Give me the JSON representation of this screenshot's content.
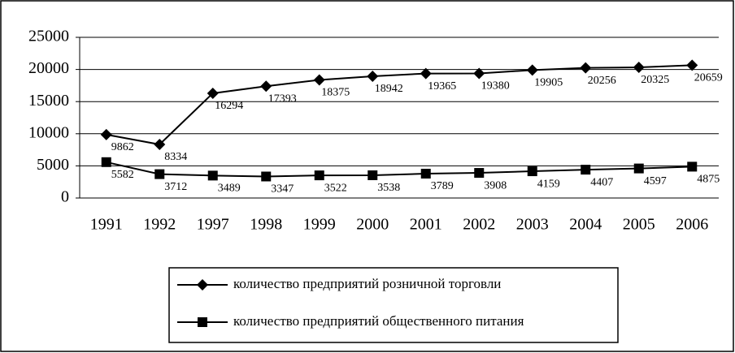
{
  "chart_data": {
    "type": "line",
    "categories": [
      "1991",
      "1992",
      "1997",
      "1998",
      "1999",
      "2000",
      "2001",
      "2002",
      "2003",
      "2004",
      "2005",
      "2006"
    ],
    "series": [
      {
        "name": "количество предприятий розничной торговли",
        "color": "#000000",
        "marker": "diamond",
        "values": [
          9862,
          8334,
          16294,
          17393,
          18375,
          18942,
          19365,
          19380,
          19905,
          20256,
          20325,
          20659
        ]
      },
      {
        "name": "количество предприятий общественного питания",
        "color": "#000000",
        "marker": "square",
        "values": [
          5582,
          3712,
          3489,
          3347,
          3522,
          3538,
          3789,
          3908,
          4159,
          4407,
          4597,
          4875
        ]
      }
    ],
    "ylim": [
      0,
      25000
    ],
    "yticks": [
      0,
      5000,
      10000,
      15000,
      20000,
      25000
    ],
    "grid": true
  }
}
